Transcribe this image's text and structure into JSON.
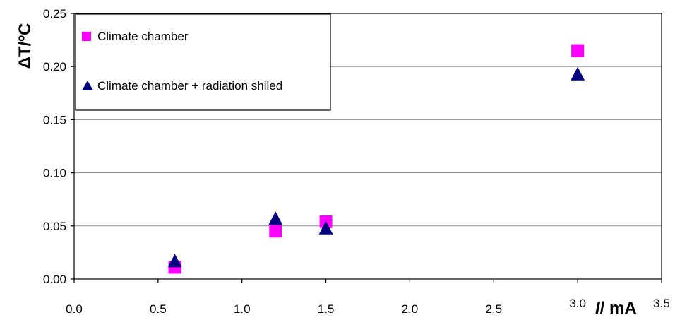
{
  "chart_data": {
    "type": "scatter",
    "title": "",
    "xlabel_italic": "I",
    "xlabel_rest": "/ mA",
    "ylabel": "ΔT/ºC",
    "xlim": [
      0.0,
      3.5
    ],
    "ylim": [
      0.0,
      0.25
    ],
    "x_ticks": [
      "0.0",
      "0.5",
      "1.0",
      "1.5",
      "2.0",
      "2.5",
      "3.0",
      "3.5"
    ],
    "y_ticks": [
      "0.00",
      "0.05",
      "0.10",
      "0.15",
      "0.20",
      "0.25"
    ],
    "grid": "horizontal",
    "legend_position": "top-left",
    "series": [
      {
        "name": "Climate chamber",
        "marker": "square",
        "color": "#ff00ff",
        "x": [
          0.6,
          1.2,
          1.5,
          3.0
        ],
        "y": [
          0.011,
          0.045,
          0.054,
          0.215
        ]
      },
      {
        "name": "Climate chamber + radiation shiled",
        "marker": "triangle",
        "color": "#000080",
        "x": [
          0.6,
          1.2,
          1.5,
          3.0
        ],
        "y": [
          0.017,
          0.057,
          0.048,
          0.193
        ]
      }
    ]
  }
}
